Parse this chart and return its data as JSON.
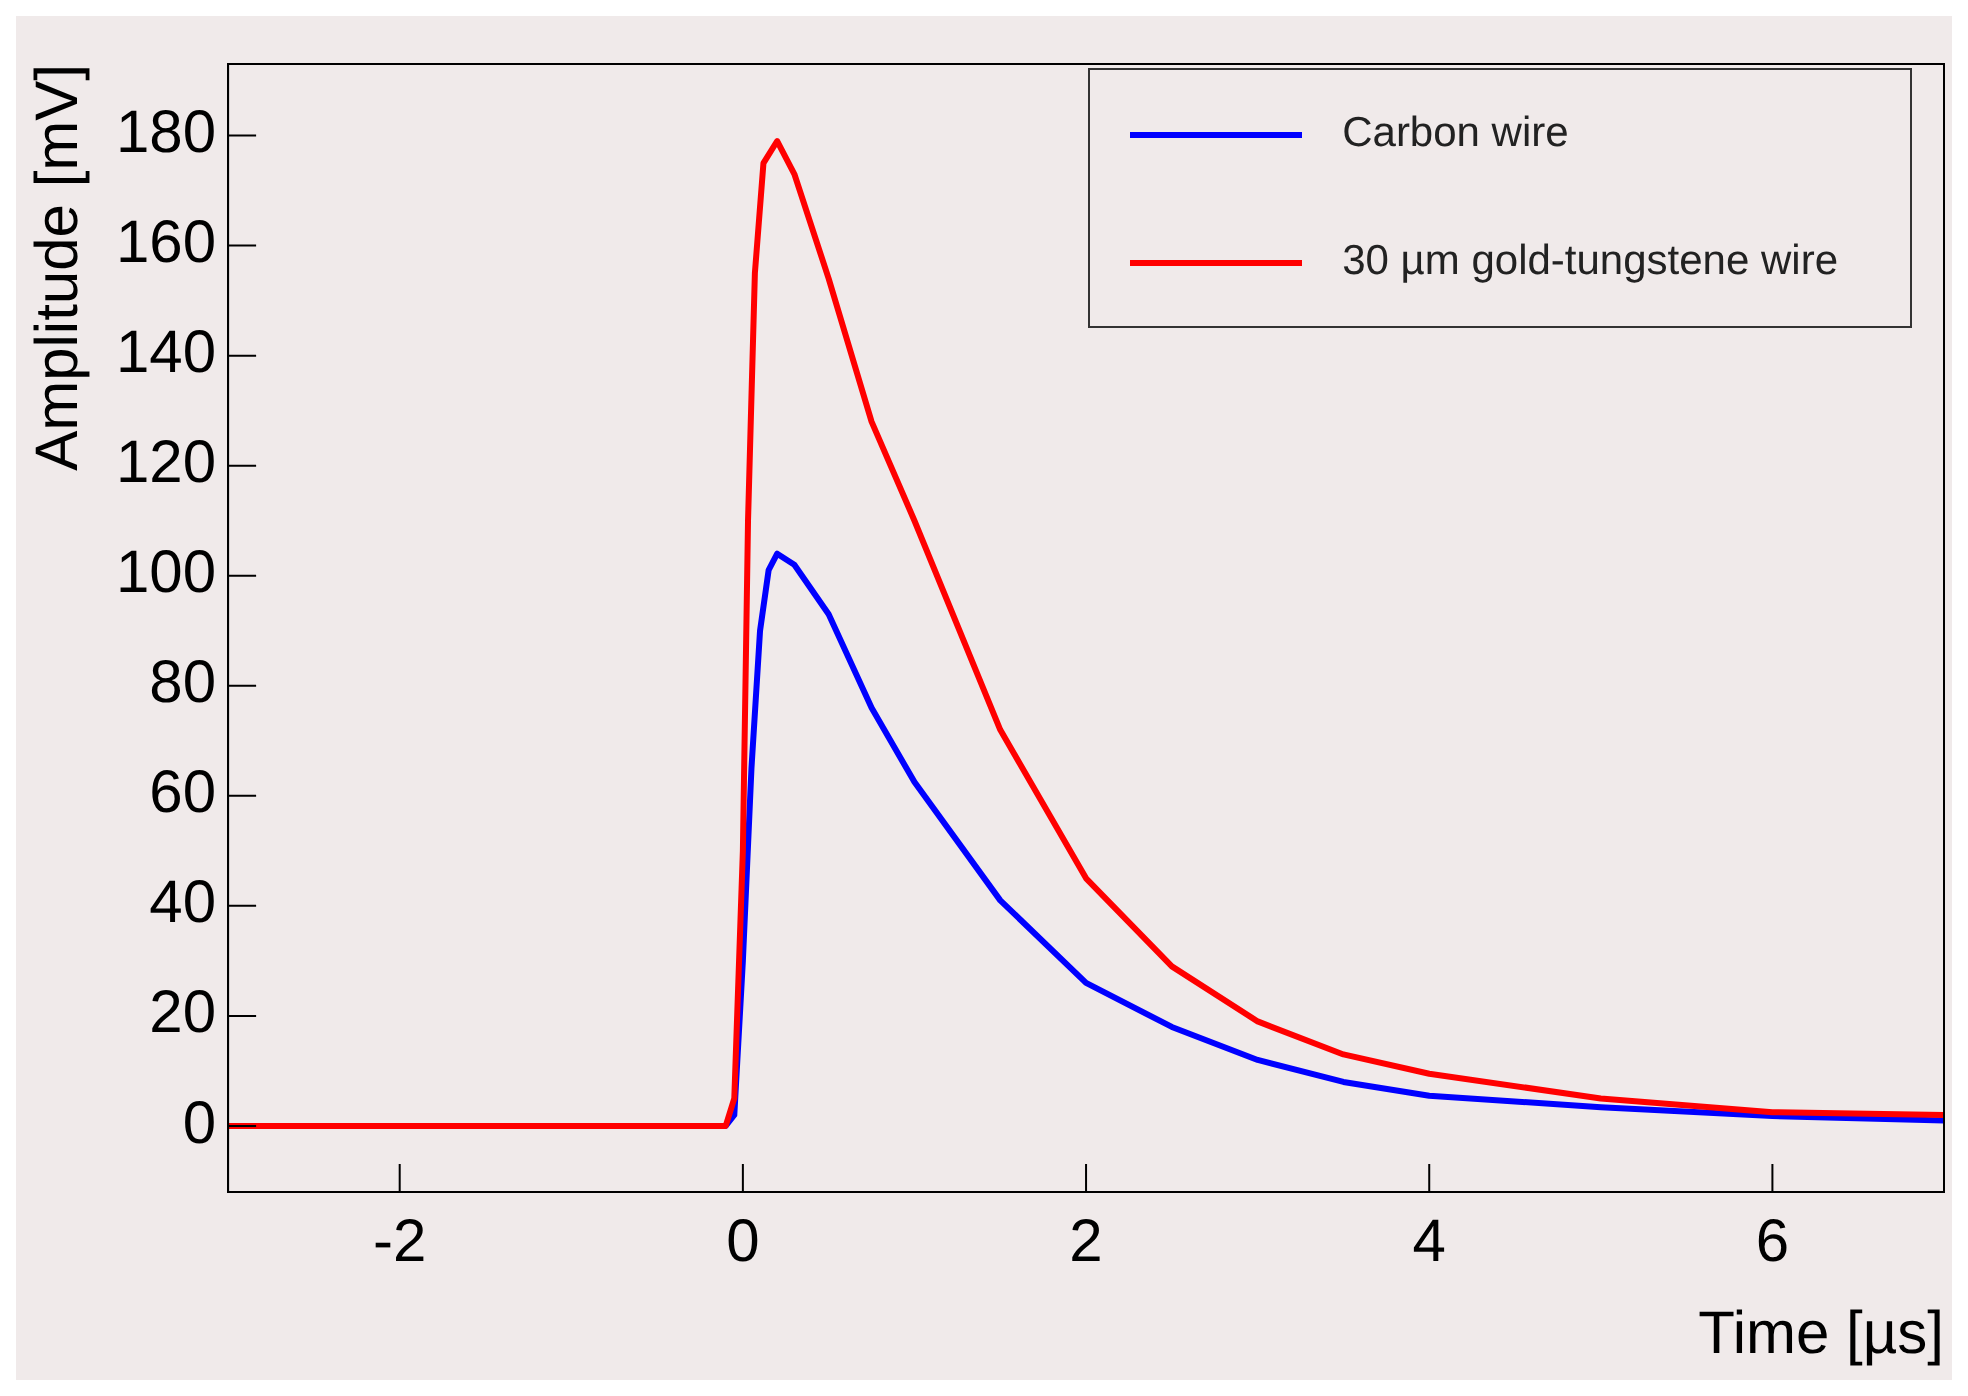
{
  "chart_data": {
    "type": "line",
    "xlabel": "Time [µs]",
    "ylabel": "Amplitude [mV]",
    "xlim": [
      -3,
      7
    ],
    "xticks": [
      -2,
      0,
      2,
      4,
      6
    ],
    "ylim": [
      -12,
      193
    ],
    "yticks": [
      0,
      20,
      40,
      60,
      80,
      100,
      120,
      140,
      160,
      180
    ],
    "legend": "top right",
    "grid": false,
    "marker": "none",
    "line_style": "solid",
    "series": [
      {
        "name": "Carbon wire",
        "color": "#0000ff",
        "x": [
          -3,
          -0.1,
          -0.05,
          0,
          0.05,
          0.1,
          0.15,
          0.2,
          0.3,
          0.5,
          0.75,
          1,
          1.5,
          2,
          2.5,
          3,
          3.5,
          4,
          5,
          6,
          7
        ],
        "values": [
          0,
          0,
          2,
          30,
          65,
          90,
          101,
          104,
          102,
          93,
          76,
          62.5,
          41,
          26,
          18,
          12,
          8,
          5.5,
          3.4,
          1.8,
          1
        ]
      },
      {
        "name": "30 µm gold-tungstene wire",
        "color": "#ff0000",
        "x": [
          -3,
          -0.1,
          -0.05,
          0,
          0.03,
          0.07,
          0.12,
          0.2,
          0.3,
          0.5,
          0.75,
          1,
          1.5,
          2,
          2.5,
          3,
          3.5,
          4,
          5,
          6,
          7
        ],
        "values": [
          0,
          0,
          5,
          50,
          110,
          155,
          175,
          179,
          173,
          154,
          128,
          110,
          72,
          45,
          29,
          19,
          13,
          9.5,
          5,
          2.5,
          2
        ]
      }
    ]
  }
}
